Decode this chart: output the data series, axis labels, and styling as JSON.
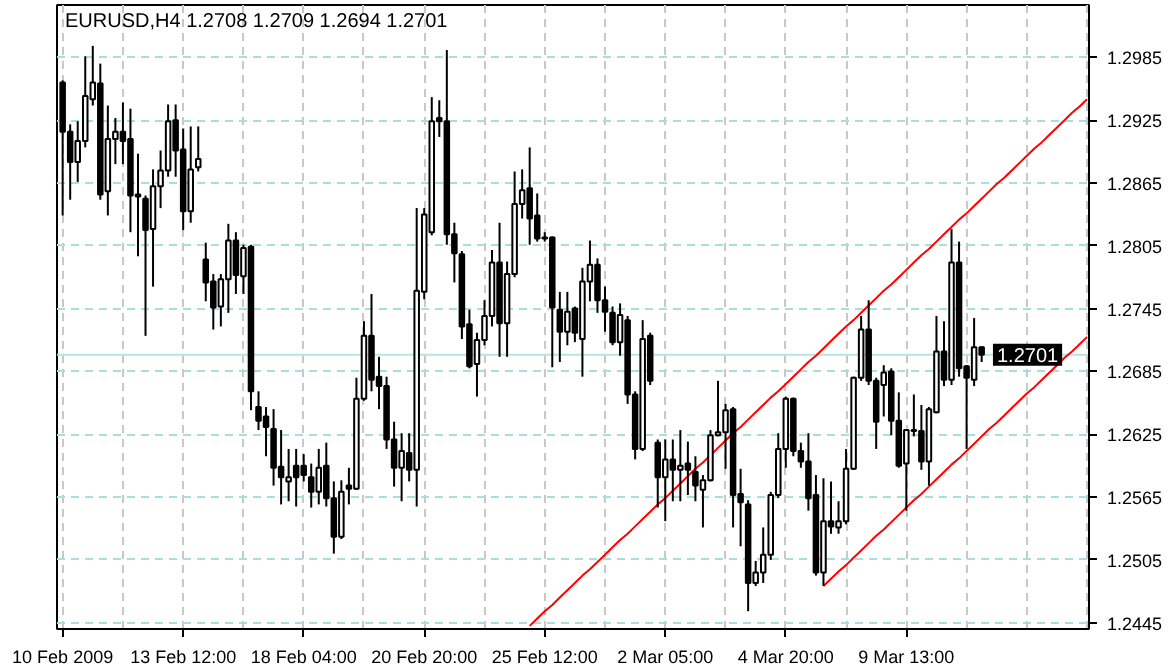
{
  "chart_data": {
    "type": "candlestick",
    "title": "EURUSD,H4  1.2708 1.2709 1.2694 1.2701",
    "color": "#000000",
    "categories": [
      "10 Feb 2009",
      null,
      null,
      null,
      null,
      null,
      null,
      null,
      null,
      null,
      null,
      null,
      null,
      null,
      null,
      null,
      "13 Feb 12:00",
      null,
      null,
      null,
      null,
      null,
      null,
      null,
      null,
      null,
      null,
      null,
      null,
      null,
      null,
      null,
      "18 Feb 04:00",
      null,
      null,
      null,
      null,
      null,
      null,
      null,
      null,
      null,
      null,
      null,
      null,
      null,
      null,
      null,
      "20 Feb 20:00",
      null,
      null,
      null,
      null,
      null,
      null,
      null,
      null,
      null,
      null,
      null,
      null,
      null,
      null,
      null,
      "25 Feb 12:00",
      null,
      null,
      null,
      null,
      null,
      null,
      null,
      null,
      null,
      null,
      null,
      null,
      null,
      null,
      null,
      "2 Mar 05:00",
      null,
      null,
      null,
      null,
      null,
      null,
      null,
      null,
      null,
      null,
      null,
      null,
      null,
      null,
      null,
      "4 Mar 20:00",
      null,
      null,
      null,
      null,
      null,
      null,
      null,
      null,
      null,
      null,
      null,
      null,
      null,
      null,
      null,
      "9 Mar 13:00",
      null,
      null,
      null,
      null,
      null,
      null,
      null,
      null,
      null,
      null,
      null,
      null,
      null,
      null,
      null,
      null,
      null,
      null,
      null,
      null,
      null,
      null,
      null,
      null
    ],
    "ohlc": [
      [
        1.2961,
        1.2963,
        1.2834,
        1.2914
      ],
      [
        1.2914,
        1.2921,
        1.2849,
        1.2885
      ],
      [
        1.2885,
        1.2924,
        1.2866,
        1.2905
      ],
      [
        1.2905,
        1.2986,
        1.2899,
        1.2948
      ],
      [
        1.2945,
        1.2996,
        1.2939,
        1.2961
      ],
      [
        1.296,
        1.2979,
        1.2849,
        1.2854
      ],
      [
        1.2857,
        1.2939,
        1.2834,
        1.2907
      ],
      [
        1.2907,
        1.2927,
        1.2883,
        1.2914
      ],
      [
        1.2914,
        1.2942,
        1.2883,
        1.2905
      ],
      [
        1.2907,
        1.2936,
        1.2818,
        1.2853
      ],
      [
        1.2854,
        1.2893,
        1.2795,
        1.2852
      ],
      [
        1.285,
        1.2853,
        1.2719,
        1.282
      ],
      [
        1.2821,
        1.2878,
        1.2766,
        1.2862
      ],
      [
        1.2862,
        1.2896,
        1.2841,
        1.2877
      ],
      [
        1.2877,
        1.294,
        1.2871,
        1.2924
      ],
      [
        1.2925,
        1.294,
        1.2871,
        1.2896
      ],
      [
        1.2897,
        1.2917,
        1.282,
        1.2838
      ],
      [
        1.2838,
        1.2919,
        1.2827,
        1.2878
      ],
      [
        1.288,
        1.2919,
        1.2876,
        1.2888
      ],
      [
        1.2792,
        1.2808,
        1.2752,
        1.277
      ],
      [
        1.2771,
        1.2778,
        1.2725,
        1.2746
      ],
      [
        1.2747,
        1.2778,
        1.2728,
        1.2773
      ],
      [
        1.2773,
        1.2826,
        1.2741,
        1.281
      ],
      [
        1.281,
        1.2818,
        1.2759,
        1.2777
      ],
      [
        1.2776,
        1.2806,
        1.2759,
        1.2803
      ],
      [
        1.2804,
        1.2806,
        1.2648,
        1.2666
      ],
      [
        1.2651,
        1.2666,
        1.2629,
        1.2638
      ],
      [
        1.2642,
        1.2651,
        1.2604,
        1.2632
      ],
      [
        1.263,
        1.2649,
        1.2576,
        1.2593
      ],
      [
        1.2594,
        1.2629,
        1.2558,
        1.2584
      ],
      [
        1.258,
        1.2611,
        1.2561,
        1.2584
      ],
      [
        1.2595,
        1.2611,
        1.2556,
        1.2584
      ],
      [
        1.2595,
        1.2606,
        1.258,
        1.2586
      ],
      [
        1.2584,
        1.2597,
        1.2555,
        1.257
      ],
      [
        1.257,
        1.2611,
        1.2558,
        1.2593
      ],
      [
        1.2595,
        1.2617,
        1.2556,
        1.2564
      ],
      [
        1.2564,
        1.258,
        1.2511,
        1.2527
      ],
      [
        1.2527,
        1.2581,
        1.2525,
        1.257
      ],
      [
        1.2576,
        1.2593,
        1.2558,
        1.2573
      ],
      [
        1.2573,
        1.2679,
        1.2572,
        1.2659
      ],
      [
        1.2659,
        1.2733,
        1.2657,
        1.2719
      ],
      [
        1.2719,
        1.2759,
        1.2666,
        1.2677
      ],
      [
        1.268,
        1.2699,
        1.2649,
        1.2671
      ],
      [
        1.2671,
        1.268,
        1.2611,
        1.262
      ],
      [
        1.262,
        1.2637,
        1.2575,
        1.2593
      ],
      [
        1.2593,
        1.2626,
        1.2561,
        1.2609
      ],
      [
        1.2607,
        1.2626,
        1.258,
        1.2591
      ],
      [
        1.2591,
        1.2841,
        1.2556,
        1.2762
      ],
      [
        1.2761,
        1.2841,
        1.2754,
        1.2835
      ],
      [
        1.2818,
        1.2947,
        1.2815,
        1.2924
      ],
      [
        1.2927,
        1.2944,
        1.2909,
        1.2924
      ],
      [
        1.2924,
        1.2992,
        1.2806,
        1.2816
      ],
      [
        1.2816,
        1.2827,
        1.277,
        1.2798
      ],
      [
        1.2797,
        1.28,
        1.2716,
        1.2728
      ],
      [
        1.273,
        1.2744,
        1.2688,
        1.269
      ],
      [
        1.2692,
        1.2722,
        1.2661,
        1.2715
      ],
      [
        1.2715,
        1.2753,
        1.271,
        1.2738
      ],
      [
        1.2738,
        1.2801,
        1.2728,
        1.2789
      ],
      [
        1.2789,
        1.2827,
        1.2699,
        1.2731
      ],
      [
        1.2731,
        1.279,
        1.2699,
        1.2778
      ],
      [
        1.2778,
        1.2876,
        1.2775,
        1.2845
      ],
      [
        1.2845,
        1.2878,
        1.2831,
        1.2858
      ],
      [
        1.286,
        1.2899,
        1.2806,
        1.2831
      ],
      [
        1.2834,
        1.2855,
        1.2809,
        1.2812
      ],
      [
        1.2813,
        1.2818,
        1.2809,
        1.2812
      ],
      [
        1.2813,
        1.2814,
        1.2689,
        1.2746
      ],
      [
        1.2744,
        1.2761,
        1.2694,
        1.2723
      ],
      [
        1.2723,
        1.2761,
        1.271,
        1.2742
      ],
      [
        1.2745,
        1.2747,
        1.2713,
        1.2722
      ],
      [
        1.2716,
        1.2784,
        1.268,
        1.2771
      ],
      [
        1.2771,
        1.281,
        1.2752,
        1.2787
      ],
      [
        1.2787,
        1.2793,
        1.2741,
        1.2753
      ],
      [
        1.2753,
        1.2766,
        1.2723,
        1.2742
      ],
      [
        1.2741,
        1.2747,
        1.271,
        1.2713
      ],
      [
        1.2713,
        1.275,
        1.27,
        1.2739
      ],
      [
        1.2734,
        1.2738,
        1.2654,
        1.2663
      ],
      [
        1.2663,
        1.2666,
        1.2601,
        1.2611
      ],
      [
        1.2611,
        1.2734,
        1.2609,
        1.2716
      ],
      [
        1.2719,
        1.2722,
        1.2672,
        1.2676
      ],
      [
        1.2617,
        1.262,
        1.2555,
        1.2584
      ],
      [
        1.2584,
        1.262,
        1.2542,
        1.2601
      ],
      [
        1.2601,
        1.262,
        1.2561,
        1.2591
      ],
      [
        1.2591,
        1.2629,
        1.2561,
        1.2595
      ],
      [
        1.2597,
        1.2618,
        1.2567,
        1.2591
      ],
      [
        1.2589,
        1.2604,
        1.2561,
        1.2576
      ],
      [
        1.2572,
        1.2586,
        1.2536,
        1.2581
      ],
      [
        1.2581,
        1.2629,
        1.258,
        1.2624
      ],
      [
        1.2624,
        1.2676,
        1.2623,
        1.2627
      ],
      [
        1.2627,
        1.2654,
        1.2592,
        1.2648
      ],
      [
        1.2649,
        1.2651,
        1.2536,
        1.2567
      ],
      [
        1.2568,
        1.2592,
        1.2518,
        1.256
      ],
      [
        1.2558,
        1.2562,
        1.2456,
        1.2483
      ],
      [
        1.2483,
        1.2504,
        1.248,
        1.2493
      ],
      [
        1.2493,
        1.2536,
        1.2483,
        1.251
      ],
      [
        1.251,
        1.257,
        1.2505,
        1.2567
      ],
      [
        1.2567,
        1.2626,
        1.2564,
        1.2611
      ],
      [
        1.2611,
        1.2661,
        1.2593,
        1.2659
      ],
      [
        1.2659,
        1.266,
        1.2604,
        1.2609
      ],
      [
        1.2609,
        1.2617,
        1.2593,
        1.2599
      ],
      [
        1.2599,
        1.2626,
        1.2552,
        1.2564
      ],
      [
        1.2567,
        1.2586,
        1.249,
        1.2493
      ],
      [
        1.2493,
        1.2583,
        1.248,
        1.2542
      ],
      [
        1.2542,
        1.258,
        1.253,
        1.2537
      ],
      [
        1.2536,
        1.2561,
        1.253,
        1.2542
      ],
      [
        1.2542,
        1.2611,
        1.2539,
        1.2592
      ],
      [
        1.2592,
        1.268,
        1.2591,
        1.2679
      ],
      [
        1.2679,
        1.2738,
        1.2676,
        1.2725
      ],
      [
        1.2725,
        1.2753,
        1.2672,
        1.2676
      ],
      [
        1.2676,
        1.2679,
        1.2611,
        1.2637
      ],
      [
        1.2672,
        1.2691,
        1.2642,
        1.2684
      ],
      [
        1.2685,
        1.2688,
        1.2624,
        1.2638
      ],
      [
        1.2638,
        1.2665,
        1.2593,
        1.2595
      ],
      [
        1.2597,
        1.2629,
        1.2552,
        1.2629
      ],
      [
        1.2628,
        1.2663,
        1.2623,
        1.2629
      ],
      [
        1.2628,
        1.2653,
        1.2591,
        1.2599
      ],
      [
        1.2599,
        1.2651,
        1.2576,
        1.2649
      ],
      [
        1.2646,
        1.2738,
        1.2645,
        1.2704
      ],
      [
        1.2704,
        1.2733,
        1.2671,
        1.2677
      ],
      [
        1.2677,
        1.2821,
        1.2672,
        1.2789
      ],
      [
        1.2789,
        1.2809,
        1.268,
        1.2688
      ],
      [
        1.269,
        1.2691,
        1.2611,
        1.2679
      ],
      [
        1.2677,
        1.2736,
        1.2671,
        1.2708
      ],
      [
        1.2708,
        1.2709,
        1.2694,
        1.2701
      ],
      null,
      null,
      null,
      null,
      null,
      null,
      null,
      null,
      null,
      null,
      null,
      null,
      null,
      null
    ],
    "series": [
      {
        "type": "line",
        "color": "#ff0000",
        "values": [
          null,
          null,
          null,
          null,
          null,
          null,
          null,
          null,
          null,
          null,
          null,
          null,
          null,
          null,
          null,
          null,
          null,
          null,
          null,
          null,
          null,
          null,
          null,
          null,
          null,
          null,
          null,
          null,
          null,
          null,
          null,
          null,
          null,
          null,
          null,
          null,
          null,
          null,
          null,
          null,
          null,
          null,
          null,
          null,
          null,
          null,
          null,
          null,
          null,
          null,
          null,
          null,
          null,
          null,
          null,
          null,
          null,
          null,
          null,
          null,
          null,
          null,
          1.2442,
          1.2449,
          1.2456,
          1.2462,
          1.2469,
          1.2476,
          1.2483,
          1.249,
          1.2496,
          1.2503,
          1.251,
          1.2517,
          1.2524,
          1.253,
          1.2537,
          1.2544,
          1.2551,
          1.2558,
          1.2564,
          1.2571,
          1.2578,
          1.2585,
          1.2592,
          1.2598,
          1.2605,
          1.2612,
          1.2619,
          1.2626,
          1.2632,
          1.2639,
          1.2646,
          1.2653,
          1.266,
          1.2666,
          1.2673,
          1.268,
          1.2687,
          1.2694,
          1.27,
          1.2707,
          1.2714,
          1.2721,
          1.2728,
          1.2734,
          1.2741,
          1.2748,
          1.2755,
          1.2762,
          1.2768,
          1.2775,
          1.2782,
          1.2789,
          1.2796,
          1.2802,
          1.2809,
          1.2816,
          1.2823,
          1.283,
          1.2836,
          1.2843,
          1.285,
          1.2857,
          1.2864,
          1.287,
          1.2877,
          1.2884,
          1.2891,
          1.2898,
          1.2904,
          1.2911,
          1.2918,
          1.2925,
          1.2932,
          1.2938,
          1.2945
        ]
      },
      {
        "type": "line",
        "color": "#ff0000",
        "values": [
          null,
          null,
          null,
          null,
          null,
          null,
          null,
          null,
          null,
          null,
          null,
          null,
          null,
          null,
          null,
          null,
          null,
          null,
          null,
          null,
          null,
          null,
          null,
          null,
          null,
          null,
          null,
          null,
          null,
          null,
          null,
          null,
          null,
          null,
          null,
          null,
          null,
          null,
          null,
          null,
          null,
          null,
          null,
          null,
          null,
          null,
          null,
          null,
          null,
          null,
          null,
          null,
          null,
          null,
          null,
          null,
          null,
          null,
          null,
          null,
          null,
          null,
          null,
          null,
          null,
          null,
          null,
          null,
          null,
          null,
          null,
          null,
          null,
          null,
          null,
          null,
          null,
          null,
          null,
          null,
          null,
          null,
          null,
          null,
          null,
          null,
          null,
          null,
          null,
          null,
          null,
          null,
          null,
          null,
          null,
          null,
          null,
          null,
          null,
          null,
          null,
          1.248,
          1.2487,
          1.2494,
          1.25,
          1.2507,
          1.2514,
          1.2521,
          1.2528,
          1.2534,
          1.2541,
          1.2548,
          1.2555,
          1.2562,
          1.2568,
          1.2575,
          1.2582,
          1.2589,
          1.2596,
          1.2602,
          1.2609,
          1.2616,
          1.2623,
          1.263,
          1.2636,
          1.2643,
          1.265,
          1.2657,
          1.2664,
          1.267,
          1.2677,
          1.2684,
          1.2691,
          1.2698,
          1.2704,
          1.2711,
          1.2718
        ]
      }
    ],
    "ylim": [
      1.2439,
      1.3035
    ],
    "yticks": [
      1.2445,
      1.2505,
      1.2565,
      1.2625,
      1.2685,
      1.2745,
      1.2805,
      1.2865,
      1.2925,
      1.2985
    ],
    "ref_lines": [
      {
        "axis": "y",
        "value": 1.2701,
        "label": "1.2701",
        "color": "#b8e4e4"
      }
    ],
    "grid": true
  }
}
